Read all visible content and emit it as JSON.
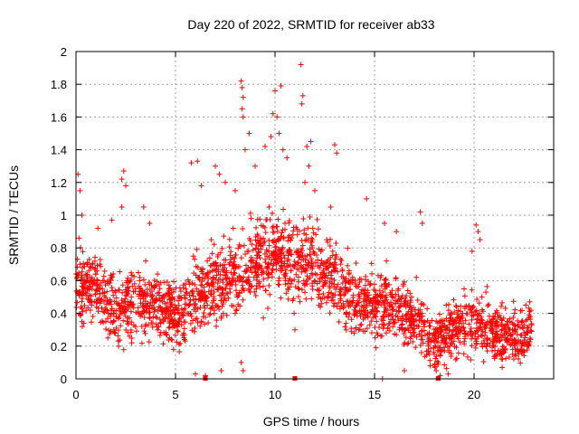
{
  "chart_data": {
    "type": "scatter",
    "title": "Day 220 of 2022, SRMTID for receiver ab33",
    "xlabel": "GPS time / hours",
    "ylabel": "SRMTID / TECUs",
    "xlim": [
      0,
      24
    ],
    "ylim": [
      0,
      2
    ],
    "xticks": [
      0,
      5,
      10,
      15,
      20
    ],
    "yticks": [
      0,
      0.2,
      0.4,
      0.6,
      0.8,
      1,
      1.2,
      1.4,
      1.6,
      1.8,
      2
    ],
    "grid": true,
    "marker": "+",
    "color": "#ff0000",
    "series": [
      {
        "name": "SRMTID",
        "trend": [
          [
            0,
            0.55
          ],
          [
            1,
            0.58
          ],
          [
            2,
            0.38
          ],
          [
            3,
            0.48
          ],
          [
            4,
            0.46
          ],
          [
            5,
            0.38
          ],
          [
            6,
            0.5
          ],
          [
            7,
            0.58
          ],
          [
            8,
            0.62
          ],
          [
            9,
            0.72
          ],
          [
            10,
            0.78
          ],
          [
            11,
            0.72
          ],
          [
            12,
            0.68
          ],
          [
            13,
            0.6
          ],
          [
            14,
            0.48
          ],
          [
            15,
            0.46
          ],
          [
            16,
            0.44
          ],
          [
            17,
            0.38
          ],
          [
            18,
            0.22
          ],
          [
            19,
            0.3
          ],
          [
            20,
            0.36
          ],
          [
            21,
            0.28
          ],
          [
            22,
            0.24
          ],
          [
            22.9,
            0.3
          ]
        ],
        "points": [
          [
            0.1,
            1.25
          ],
          [
            0.2,
            1.15
          ],
          [
            0.3,
            1.0
          ],
          [
            0.15,
            0.86
          ],
          [
            1.1,
            0.92
          ],
          [
            1.8,
            0.97
          ],
          [
            2.3,
            1.22
          ],
          [
            2.4,
            1.27
          ],
          [
            2.5,
            1.18
          ],
          [
            2.3,
            1.05
          ],
          [
            3.4,
            1.05
          ],
          [
            3.7,
            0.95
          ],
          [
            5.8,
            1.32
          ],
          [
            6.1,
            1.33
          ],
          [
            6.3,
            1.18
          ],
          [
            7.0,
            1.3
          ],
          [
            7.2,
            1.25
          ],
          [
            7.5,
            1.2
          ],
          [
            8.0,
            1.15
          ],
          [
            8.3,
            1.82
          ],
          [
            8.35,
            1.78
          ],
          [
            8.4,
            1.72
          ],
          [
            8.35,
            1.65
          ],
          [
            8.4,
            1.6
          ],
          [
            8.5,
            1.4
          ],
          [
            8.7,
            1.5
          ],
          [
            9.0,
            1.3
          ],
          [
            9.5,
            1.42
          ],
          [
            9.8,
            1.48
          ],
          [
            9.9,
            1.62
          ],
          [
            10.0,
            1.76
          ],
          [
            10.1,
            1.6
          ],
          [
            10.3,
            1.79
          ],
          [
            10.2,
            1.5
          ],
          [
            10.4,
            1.4
          ],
          [
            10.6,
            1.35
          ],
          [
            11.3,
            1.92
          ],
          [
            11.4,
            1.73
          ],
          [
            11.35,
            1.68
          ],
          [
            11.6,
            1.42
          ],
          [
            11.7,
            1.3
          ],
          [
            11.8,
            1.45
          ],
          [
            11.5,
            1.2
          ],
          [
            12.0,
            1.15
          ],
          [
            13.0,
            1.43
          ],
          [
            13.1,
            1.38
          ],
          [
            12.8,
            1.05
          ],
          [
            14.6,
            1.1
          ],
          [
            15.5,
            0.95
          ],
          [
            16.1,
            0.9
          ],
          [
            17.3,
            1.02
          ],
          [
            17.4,
            0.95
          ],
          [
            20.1,
            0.94
          ],
          [
            20.2,
            0.9
          ],
          [
            20.3,
            0.85
          ],
          [
            19.9,
            0.78
          ],
          [
            22.6,
            0.45
          ],
          [
            22.8,
            0.47
          ],
          [
            8.3,
            0.1
          ],
          [
            8.4,
            0.05
          ],
          [
            7.3,
            0.05
          ],
          [
            6.0,
            0.03
          ],
          [
            6.5,
            0.02
          ],
          [
            18.1,
            0.05
          ],
          [
            18.3,
            0.02
          ],
          [
            18.2,
            0.1
          ],
          [
            17.8,
            0.08
          ],
          [
            16.5,
            0.05
          ],
          [
            15.4,
            0.0
          ],
          [
            18.7,
            0.03
          ],
          [
            0.2,
            0.7
          ],
          [
            0.4,
            0.55
          ],
          [
            0.3,
            0.35
          ],
          [
            0.6,
            0.6
          ],
          [
            0.8,
            0.45
          ],
          [
            1.2,
            0.52
          ],
          [
            1.5,
            0.35
          ],
          [
            1.6,
            0.25
          ],
          [
            1.9,
            0.3
          ],
          [
            2.2,
            0.45
          ],
          [
            2.6,
            0.52
          ],
          [
            2.8,
            0.22
          ],
          [
            3.2,
            0.6
          ],
          [
            3.5,
            0.72
          ],
          [
            3.8,
            0.5
          ],
          [
            4.1,
            0.3
          ],
          [
            4.4,
            0.42
          ],
          [
            4.7,
            0.25
          ],
          [
            4.9,
            0.18
          ],
          [
            5.2,
            0.35
          ],
          [
            5.5,
            0.58
          ],
          [
            5.9,
            0.75
          ],
          [
            6.2,
            0.62
          ],
          [
            6.6,
            0.45
          ],
          [
            6.8,
            0.85
          ],
          [
            7.1,
            0.55
          ],
          [
            7.4,
            0.4
          ],
          [
            7.7,
            0.7
          ],
          [
            7.9,
            0.92
          ],
          [
            8.1,
            0.5
          ],
          [
            8.6,
            0.78
          ],
          [
            8.8,
            0.98
          ],
          [
            9.1,
            0.62
          ],
          [
            9.3,
            0.85
          ],
          [
            9.6,
            0.75
          ],
          [
            9.7,
            1.05
          ],
          [
            10.5,
            0.95
          ],
          [
            10.7,
            0.6
          ],
          [
            10.9,
            0.88
          ],
          [
            11.0,
            0.3
          ],
          [
            11.2,
            0.55
          ],
          [
            11.5,
            0.75
          ],
          [
            11.9,
            0.92
          ],
          [
            12.2,
            0.45
          ],
          [
            12.4,
            0.62
          ],
          [
            12.6,
            0.85
          ],
          [
            12.9,
            0.78
          ],
          [
            13.3,
            0.55
          ],
          [
            13.6,
            0.4
          ],
          [
            13.9,
            0.62
          ],
          [
            14.2,
            0.3
          ],
          [
            14.5,
            0.45
          ],
          [
            14.8,
            0.58
          ],
          [
            15.1,
            0.35
          ],
          [
            15.3,
            0.5
          ],
          [
            15.6,
            0.72
          ],
          [
            15.9,
            0.42
          ],
          [
            16.2,
            0.55
          ],
          [
            16.5,
            0.3
          ],
          [
            16.8,
            0.48
          ],
          [
            17.1,
            0.62
          ],
          [
            17.5,
            0.35
          ],
          [
            17.7,
            0.2
          ],
          [
            18.0,
            0.15
          ],
          [
            18.4,
            0.3
          ],
          [
            18.6,
            0.45
          ],
          [
            18.9,
            0.25
          ],
          [
            19.2,
            0.38
          ],
          [
            19.5,
            0.55
          ],
          [
            19.8,
            0.42
          ],
          [
            20.4,
            0.3
          ],
          [
            20.6,
            0.2
          ],
          [
            20.9,
            0.35
          ],
          [
            21.2,
            0.25
          ],
          [
            21.5,
            0.18
          ],
          [
            21.8,
            0.3
          ],
          [
            22.1,
            0.22
          ],
          [
            22.4,
            0.35
          ],
          [
            22.7,
            0.28
          ],
          [
            22.9,
            0.33
          ]
        ]
      }
    ],
    "axis_markers_x": [
      6.5,
      11.0,
      18.2
    ]
  }
}
